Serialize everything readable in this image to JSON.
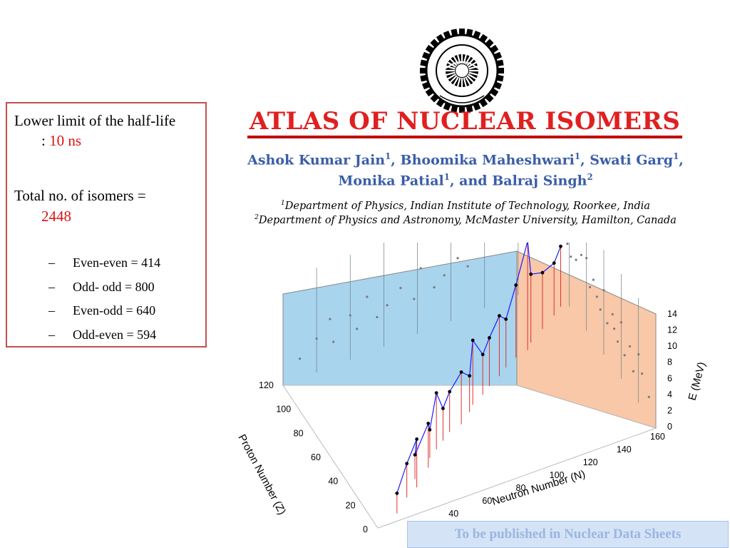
{
  "info": {
    "half_life_label": "Lower limit of the half-life",
    "half_life_prefix": ":",
    "half_life_value": "10 ns",
    "total_label": "Total no. of isomers =",
    "total_value": "2448",
    "breakdown": [
      {
        "label": "Even-even = 414"
      },
      {
        "label": "Odd- odd = 800"
      },
      {
        "label": "Even-odd = 640"
      },
      {
        "label": "Odd-even = 594"
      }
    ],
    "dash": "–"
  },
  "header": {
    "title": "ATLAS OF NUCLEAR ISOMERS",
    "authors_line1_parts": [
      "Ashok Kumar Jain",
      "1",
      ", Bhoomika Maheshwari",
      "1",
      ", Swati Garg",
      "1",
      ","
    ],
    "authors_line2_parts": [
      "Monika Patial",
      "1",
      ", and Balraj Singh",
      "2"
    ],
    "affiliation1_num": "1",
    "affiliation1": "Department of Physics, Indian Institute of Technology, Roorkee, India",
    "affiliation2_num": "2",
    "affiliation2": "Department of Physics and Astronomy, McMaster University, Hamilton, Canada"
  },
  "footer": {
    "text": "To be published in Nuclear Data Sheets"
  },
  "colors": {
    "title_red": "#e02020",
    "author_blue": "#3a5da8",
    "box_border": "#c0504d",
    "back_wall": "#a9d4ee",
    "side_wall": "#f8c8a8",
    "points": "#000000",
    "lines": "#1a1aff",
    "drop_lines": "#e03030"
  },
  "chart_data": {
    "type": "scatter",
    "xlabel": "Neutron Number (N)",
    "ylabel": "Proton Number (Z)",
    "zlabel": "E (MeV)",
    "x_ticks": [
      "0",
      "20",
      "40",
      "60",
      "80",
      "100",
      "120",
      "140",
      "160"
    ],
    "y_ticks": [
      "0",
      "20",
      "40",
      "60",
      "80",
      "100",
      "120"
    ],
    "z_ticks": [
      "0",
      "2",
      "4",
      "6",
      "8",
      "10",
      "12",
      "14"
    ],
    "xlim": [
      0,
      160
    ],
    "ylim": [
      0,
      120
    ],
    "zlim": [
      0,
      14
    ],
    "projection": "3d",
    "series": [
      {
        "name": "",
        "points": [
          {
            "N": 10,
            "Z": 8,
            "E": 2.5
          },
          {
            "N": 20,
            "Z": 16,
            "E": 4.2
          },
          {
            "N": 28,
            "Z": 20,
            "E": 6.0
          },
          {
            "N": 30,
            "Z": 26,
            "E": 3.0
          },
          {
            "N": 40,
            "Z": 30,
            "E": 5.5
          },
          {
            "N": 44,
            "Z": 36,
            "E": 3.5
          },
          {
            "N": 50,
            "Z": 40,
            "E": 7.0
          },
          {
            "N": 56,
            "Z": 44,
            "E": 4.0
          },
          {
            "N": 62,
            "Z": 48,
            "E": 5.0
          },
          {
            "N": 70,
            "Z": 50,
            "E": 6.5
          },
          {
            "N": 78,
            "Z": 56,
            "E": 4.5
          },
          {
            "N": 82,
            "Z": 60,
            "E": 8.0
          },
          {
            "N": 90,
            "Z": 64,
            "E": 5.0
          },
          {
            "N": 96,
            "Z": 68,
            "E": 6.0
          },
          {
            "N": 104,
            "Z": 72,
            "E": 7.5
          },
          {
            "N": 110,
            "Z": 76,
            "E": 6.0
          },
          {
            "N": 118,
            "Z": 80,
            "E": 9.0
          },
          {
            "N": 126,
            "Z": 82,
            "E": 13.5
          },
          {
            "N": 130,
            "Z": 86,
            "E": 8.5
          },
          {
            "N": 140,
            "Z": 92,
            "E": 7.0
          },
          {
            "N": 150,
            "Z": 98,
            "E": 6.5
          },
          {
            "N": 156,
            "Z": 102,
            "E": 7.5
          }
        ]
      }
    ]
  }
}
